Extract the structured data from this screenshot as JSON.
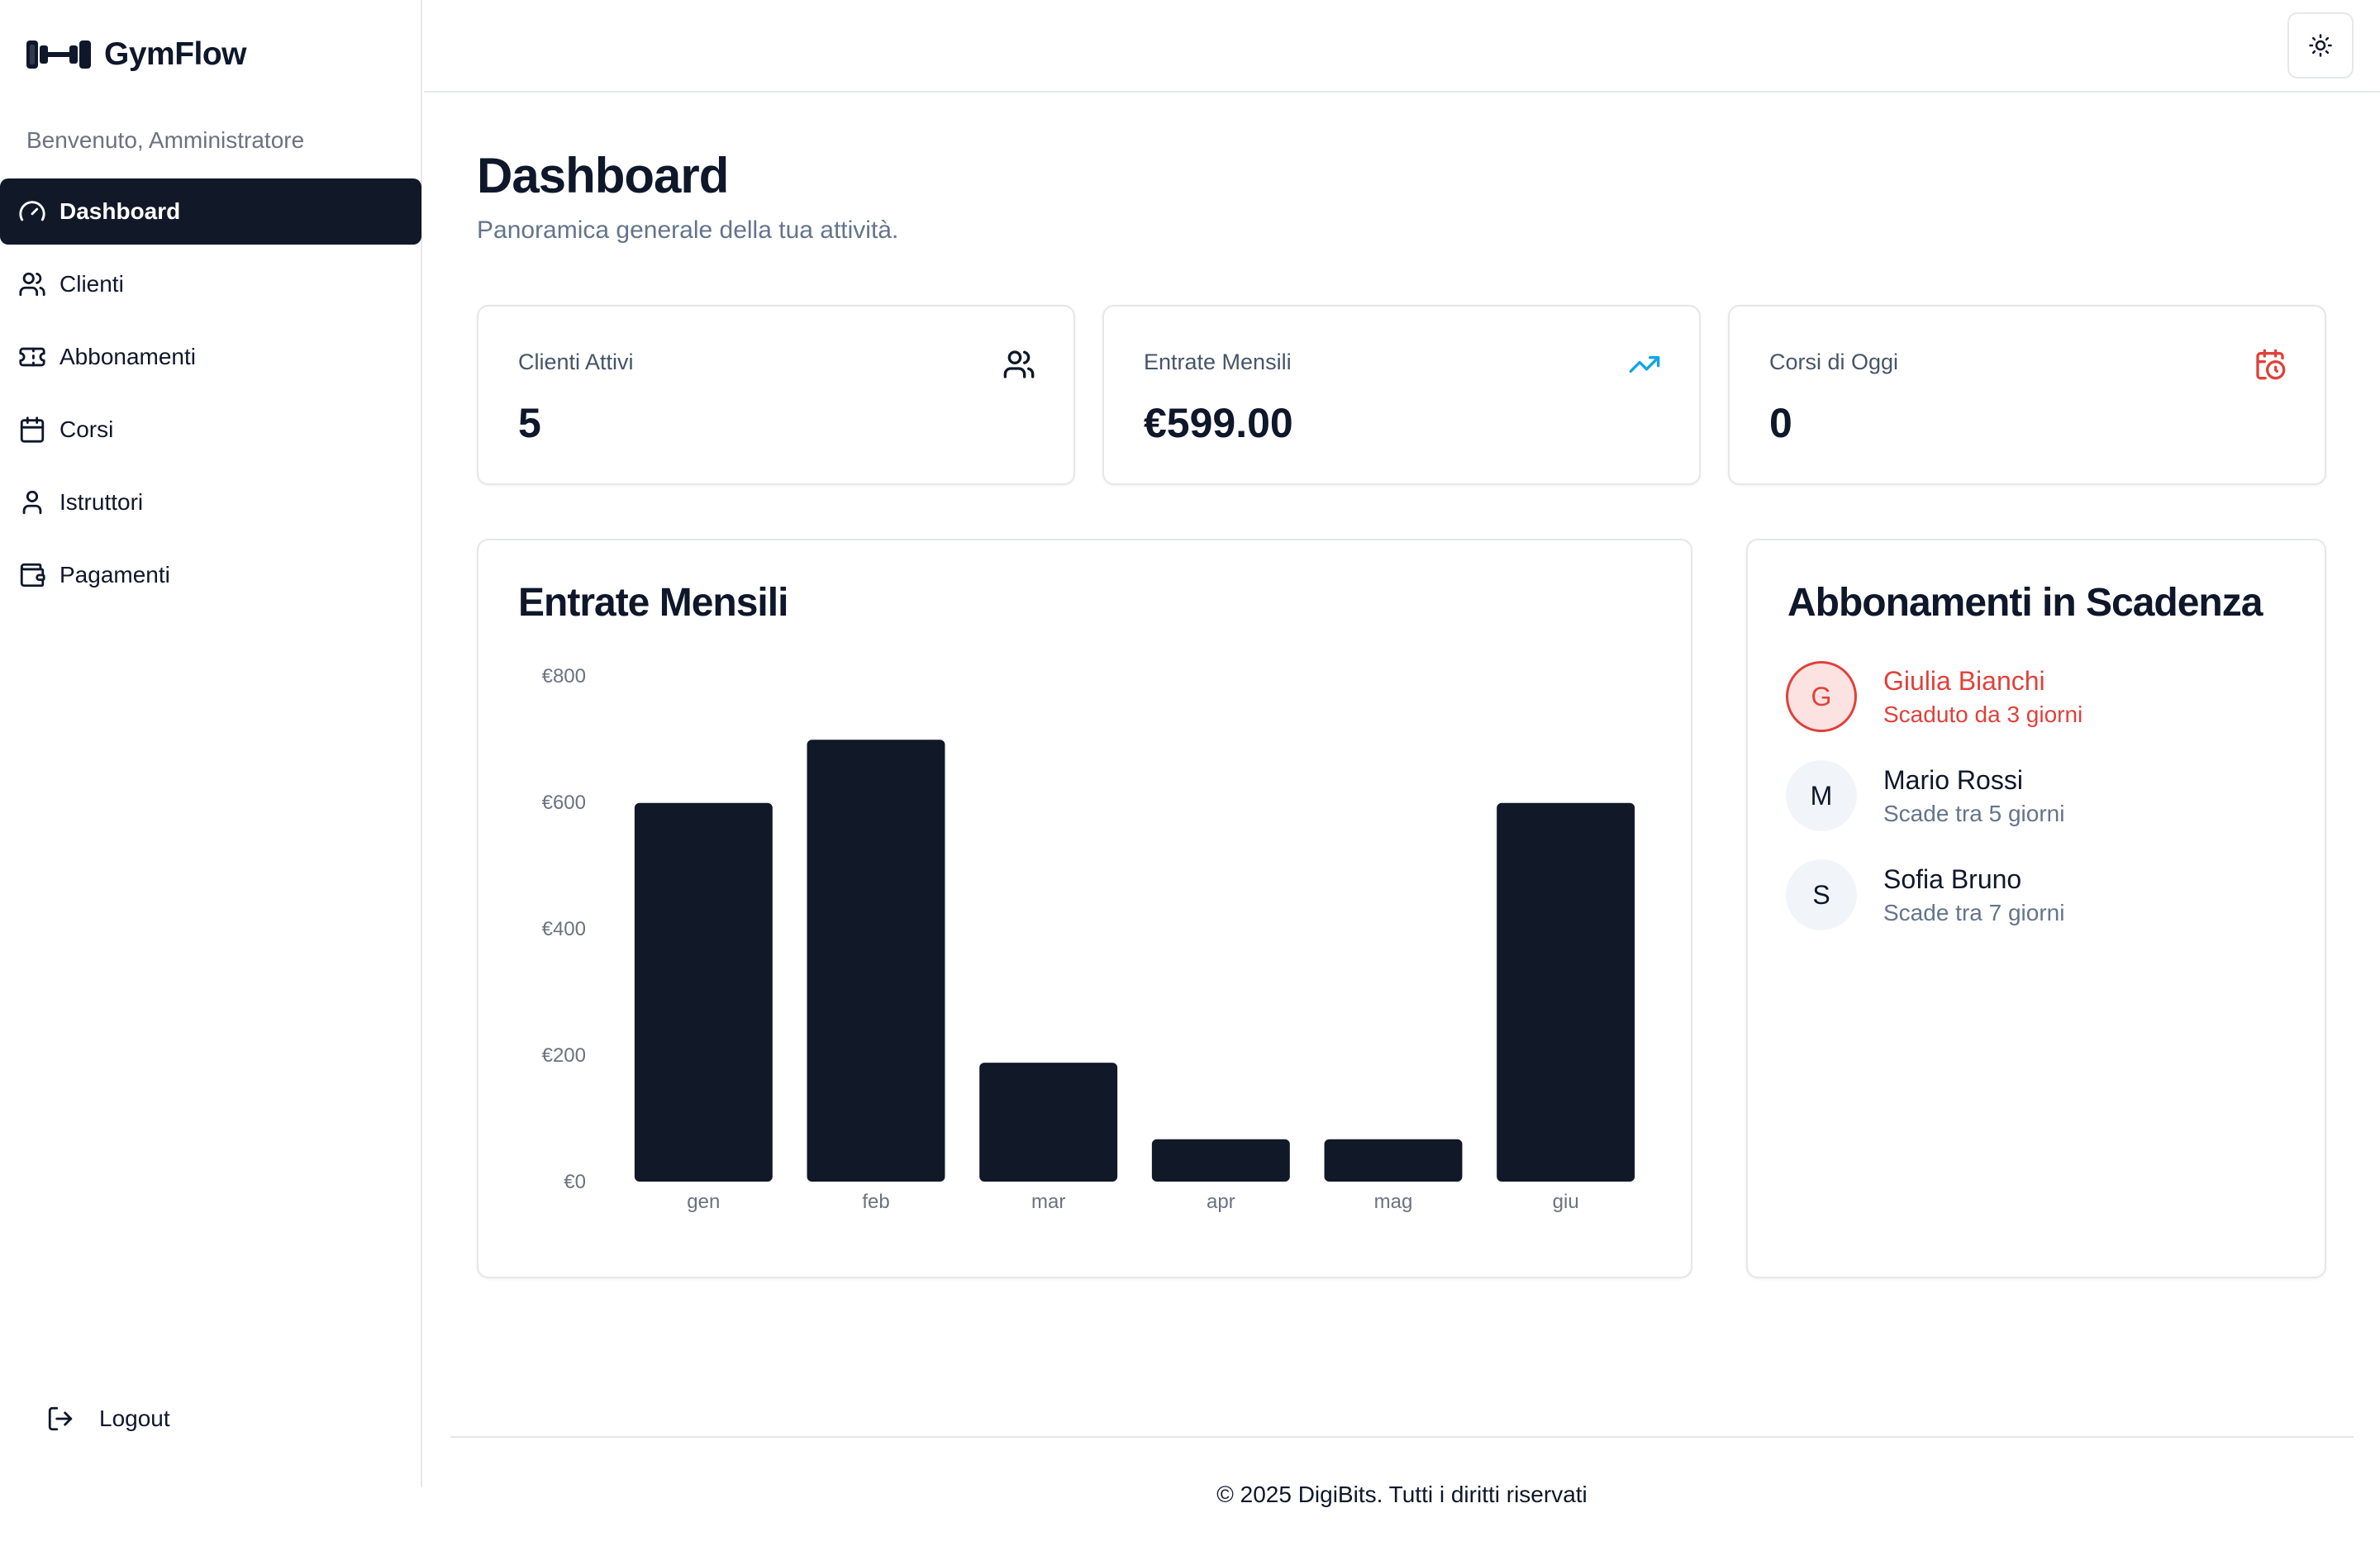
{
  "sidebar": {
    "brand": "GymFlow",
    "welcome": "Benvenuto, Amministratore",
    "items": [
      {
        "label": "Dashboard",
        "icon": "gauge-icon",
        "active": true
      },
      {
        "label": "Clienti",
        "icon": "users-icon"
      },
      {
        "label": "Abbonamenti",
        "icon": "ticket-icon"
      },
      {
        "label": "Corsi",
        "icon": "calendar-icon"
      },
      {
        "label": "Istruttori",
        "icon": "user-icon"
      },
      {
        "label": "Pagamenti",
        "icon": "wallet-icon"
      }
    ],
    "logout": "Logout"
  },
  "header": {
    "title": "Dashboard",
    "subtitle": "Panoramica generale della tua attività."
  },
  "stats": [
    {
      "label": "Clienti Attivi",
      "value": "5",
      "icon": "users-icon",
      "icon_color": "#0f172a"
    },
    {
      "label": "Entrate Mensili",
      "value": "€599.00",
      "icon": "trending-up-icon",
      "icon_color": "#0ea5e9"
    },
    {
      "label": "Corsi di Oggi",
      "value": "0",
      "icon": "calendar-clock-icon",
      "icon_color": "#e0413a"
    }
  ],
  "revenue": {
    "title": "Entrate Mensili"
  },
  "chart_data": {
    "type": "bar",
    "categories": [
      "gen",
      "feb",
      "mar",
      "apr",
      "mag",
      "giu"
    ],
    "values": [
      599,
      699,
      188,
      67,
      67,
      599
    ],
    "ylim": [
      0,
      800
    ],
    "yticks": [
      0,
      200,
      400,
      600,
      800
    ],
    "ytick_labels": [
      "€0",
      "€200",
      "€400",
      "€600",
      "€800"
    ],
    "bar_color": "#111827",
    "grid": false
  },
  "expiring": {
    "title": "Abbonamenti in Scadenza",
    "items": [
      {
        "initial": "G",
        "name": "Giulia Bianchi",
        "status": "Scaduto da 3 giorni",
        "expired": true
      },
      {
        "initial": "M",
        "name": "Mario Rossi",
        "status": "Scade tra 5 giorni",
        "expired": false
      },
      {
        "initial": "S",
        "name": "Sofia Bruno",
        "status": "Scade tra 7 giorni",
        "expired": false
      }
    ]
  },
  "footer": "© 2025 DigiBits. Tutti i diritti riservati",
  "colors": {
    "accent": "#111827",
    "danger": "#e0413a",
    "info": "#0ea5e9",
    "muted": "#64748b"
  }
}
